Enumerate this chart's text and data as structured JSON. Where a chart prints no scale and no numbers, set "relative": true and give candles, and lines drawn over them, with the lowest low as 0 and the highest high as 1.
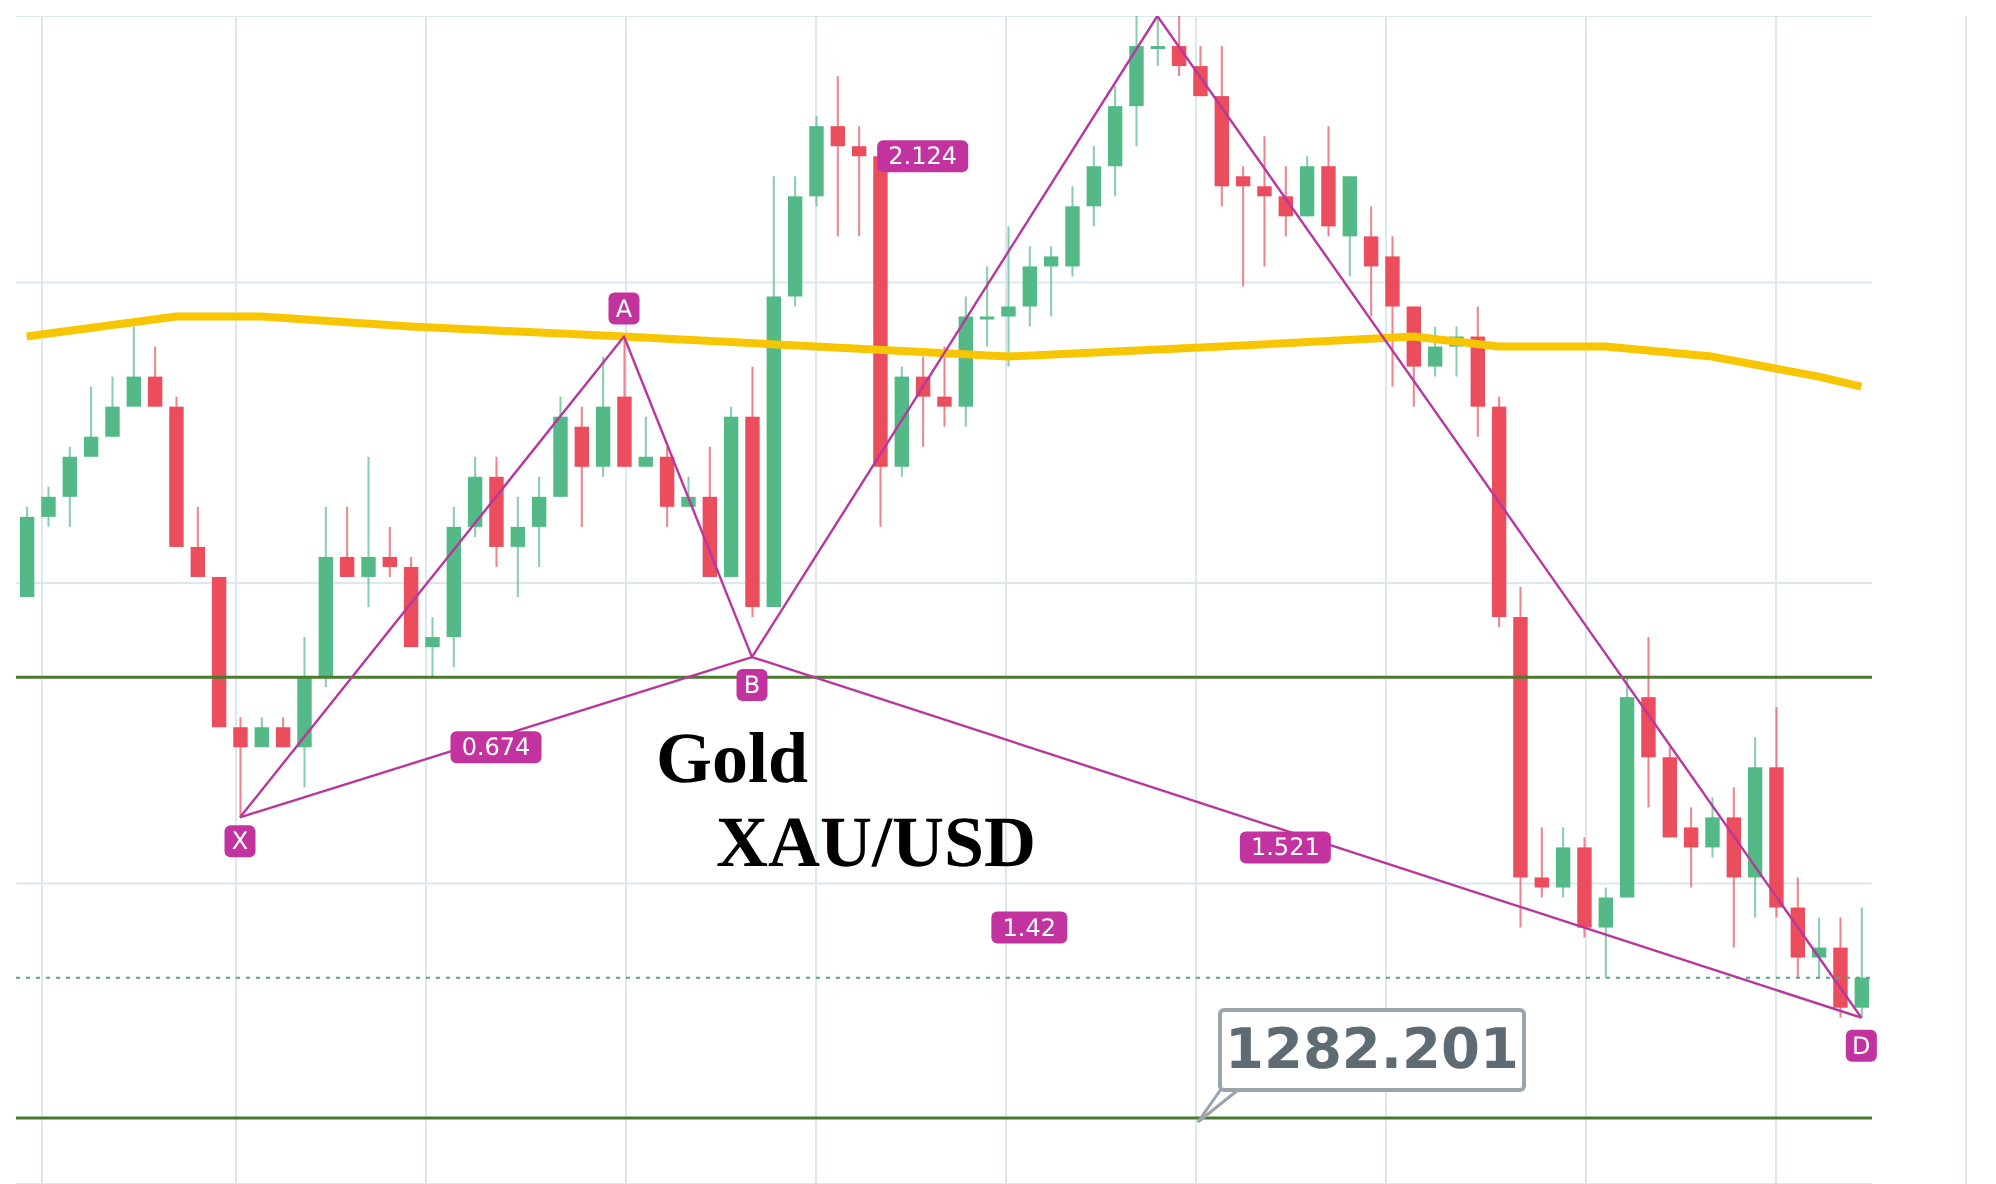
{
  "chart_data": {
    "type": "candlestick",
    "title": "Gold XAU/USD",
    "relative": true,
    "grid": true,
    "categories": [
      null,
      null,
      null,
      null,
      null,
      null,
      null,
      null,
      null,
      null,
      null,
      null,
      null,
      null,
      null,
      null,
      null,
      null,
      null,
      null,
      null,
      null,
      null,
      null,
      null,
      null,
      null,
      null,
      null,
      null,
      null,
      null,
      null,
      null,
      null,
      null,
      null,
      null,
      null,
      null,
      null,
      null,
      null,
      null,
      null,
      null,
      null,
      null,
      null,
      null,
      null,
      null,
      null,
      null,
      null,
      null,
      null,
      null,
      null,
      null,
      null,
      null,
      null,
      null,
      null,
      null,
      null,
      null,
      null,
      null,
      null,
      null,
      null,
      null,
      null,
      null,
      null,
      null,
      null,
      null,
      null,
      null,
      null,
      null,
      null,
      null,
      null
    ],
    "ohlc": [
      [
        0.42,
        0.51,
        0.42,
        0.5
      ],
      [
        0.5,
        0.53,
        0.49,
        0.52
      ],
      [
        0.52,
        0.57,
        0.49,
        0.56
      ],
      [
        0.56,
        0.63,
        0.56,
        0.58
      ],
      [
        0.58,
        0.64,
        0.58,
        0.61
      ],
      [
        0.61,
        0.69,
        0.61,
        0.64
      ],
      [
        0.64,
        0.67,
        0.61,
        0.61
      ],
      [
        0.61,
        0.62,
        0.47,
        0.47
      ],
      [
        0.47,
        0.51,
        0.44,
        0.44
      ],
      [
        0.44,
        0.44,
        0.29,
        0.29
      ],
      [
        0.29,
        0.3,
        0.2,
        0.27
      ],
      [
        0.27,
        0.3,
        0.27,
        0.29
      ],
      [
        0.29,
        0.3,
        0.27,
        0.27
      ],
      [
        0.27,
        0.38,
        0.23,
        0.34
      ],
      [
        0.34,
        0.51,
        0.33,
        0.46
      ],
      [
        0.46,
        0.51,
        0.44,
        0.44
      ],
      [
        0.44,
        0.56,
        0.41,
        0.46
      ],
      [
        0.46,
        0.49,
        0.44,
        0.45
      ],
      [
        0.45,
        0.46,
        0.37,
        0.37
      ],
      [
        0.37,
        0.4,
        0.34,
        0.38
      ],
      [
        0.38,
        0.51,
        0.35,
        0.49
      ],
      [
        0.49,
        0.56,
        0.48,
        0.54
      ],
      [
        0.54,
        0.56,
        0.45,
        0.47
      ],
      [
        0.47,
        0.52,
        0.42,
        0.49
      ],
      [
        0.49,
        0.54,
        0.45,
        0.52
      ],
      [
        0.52,
        0.62,
        0.52,
        0.6
      ],
      [
        0.59,
        0.61,
        0.49,
        0.55
      ],
      [
        0.55,
        0.66,
        0.54,
        0.61
      ],
      [
        0.62,
        0.68,
        0.55,
        0.55
      ],
      [
        0.55,
        0.6,
        0.55,
        0.56
      ],
      [
        0.56,
        0.57,
        0.49,
        0.51
      ],
      [
        0.51,
        0.54,
        0.51,
        0.52
      ],
      [
        0.52,
        0.57,
        0.44,
        0.44
      ],
      [
        0.44,
        0.61,
        0.44,
        0.6
      ],
      [
        0.6,
        0.65,
        0.4,
        0.41
      ],
      [
        0.41,
        0.84,
        0.41,
        0.72
      ],
      [
        0.72,
        0.84,
        0.71,
        0.82
      ],
      [
        0.82,
        0.9,
        0.81,
        0.89
      ],
      [
        0.89,
        0.94,
        0.78,
        0.87
      ],
      [
        0.87,
        0.89,
        0.78,
        0.86
      ],
      [
        0.86,
        0.86,
        0.49,
        0.55
      ],
      [
        0.55,
        0.65,
        0.54,
        0.64
      ],
      [
        0.64,
        0.66,
        0.57,
        0.62
      ],
      [
        0.62,
        0.67,
        0.59,
        0.61
      ],
      [
        0.61,
        0.72,
        0.59,
        0.7
      ],
      [
        0.7,
        0.75,
        0.67,
        0.7
      ],
      [
        0.7,
        0.79,
        0.65,
        0.71
      ],
      [
        0.71,
        0.77,
        0.69,
        0.75
      ],
      [
        0.75,
        0.77,
        0.7,
        0.76
      ],
      [
        0.75,
        0.83,
        0.74,
        0.81
      ],
      [
        0.81,
        0.87,
        0.79,
        0.85
      ],
      [
        0.85,
        0.93,
        0.82,
        0.91
      ],
      [
        0.91,
        1,
        0.87,
        0.97
      ],
      [
        0.97,
        1,
        0.95,
        0.97
      ],
      [
        0.97,
        1,
        0.94,
        0.95
      ],
      [
        0.95,
        0.97,
        0.92,
        0.92
      ],
      [
        0.92,
        0.97,
        0.81,
        0.83
      ],
      [
        0.84,
        0.85,
        0.73,
        0.83
      ],
      [
        0.83,
        0.88,
        0.75,
        0.82
      ],
      [
        0.82,
        0.85,
        0.78,
        0.8
      ],
      [
        0.8,
        0.86,
        0.8,
        0.85
      ],
      [
        0.85,
        0.89,
        0.78,
        0.79
      ],
      [
        0.78,
        0.84,
        0.74,
        0.84
      ],
      [
        0.78,
        0.81,
        0.7,
        0.75
      ],
      [
        0.76,
        0.78,
        0.63,
        0.71
      ],
      [
        0.71,
        0.71,
        0.61,
        0.65
      ],
      [
        0.65,
        0.69,
        0.64,
        0.67
      ],
      [
        0.67,
        0.69,
        0.64,
        0.68
      ],
      [
        0.68,
        0.71,
        0.58,
        0.61
      ],
      [
        0.61,
        0.62,
        0.39,
        0.4
      ],
      [
        0.4,
        0.43,
        0.09,
        0.14
      ],
      [
        0.14,
        0.19,
        0.12,
        0.13
      ],
      [
        0.13,
        0.19,
        0.12,
        0.17
      ],
      [
        0.17,
        0.18,
        0.08,
        0.09
      ],
      [
        0.09,
        0.13,
        0.04,
        0.12
      ],
      [
        0.12,
        0.34,
        0.12,
        0.32
      ],
      [
        0.32,
        0.38,
        0.21,
        0.26
      ],
      [
        0.26,
        0.27,
        0.18,
        0.18
      ],
      [
        0.19,
        0.21,
        0.13,
        0.17
      ],
      [
        0.17,
        0.22,
        0.16,
        0.2
      ],
      [
        0.2,
        0.23,
        0.07,
        0.14
      ],
      [
        0.14,
        0.28,
        0.1,
        0.25
      ],
      [
        0.25,
        0.31,
        0.1,
        0.11
      ],
      [
        0.11,
        0.14,
        0.04,
        0.06
      ],
      [
        0.06,
        0.1,
        0.04,
        0.07
      ],
      [
        0.07,
        0.1,
        0,
        0.01
      ],
      [
        0.01,
        0.11,
        0,
        0.04
      ]
    ],
    "series": [
      {
        "type": "line",
        "color": "#f7c600",
        "values": [
          0.68,
          null,
          null,
          null,
          null,
          null,
          null,
          0.7,
          null,
          null,
          null,
          0.7,
          null,
          null,
          null,
          null,
          null,
          null,
          0.69,
          null,
          null,
          null,
          null,
          null,
          null,
          null,
          null,
          null,
          0.68,
          null,
          null,
          null,
          null,
          null,
          null,
          null,
          null,
          0.67,
          null,
          null,
          null,
          null,
          null,
          null,
          null,
          null,
          0.66,
          null,
          null,
          null,
          null,
          null,
          null,
          null,
          null,
          null,
          0.67,
          null,
          null,
          null,
          null,
          null,
          null,
          null,
          null,
          0.68,
          null,
          null,
          null,
          0.67,
          null,
          null,
          null,
          null,
          0.67,
          null,
          null,
          null,
          null,
          0.66,
          null,
          null,
          null,
          null,
          0.64,
          null,
          0.63
        ]
      },
      {
        "type": "line",
        "color": "#b8379c",
        "values": [
          null,
          null,
          null,
          null,
          null,
          null,
          null,
          null,
          null,
          null,
          0.2,
          null,
          null,
          null,
          null,
          null,
          null,
          null,
          null,
          null,
          null,
          null,
          null,
          null,
          null,
          null,
          null,
          null,
          0.68,
          null,
          null,
          null,
          null,
          null,
          0.36,
          null,
          null,
          null,
          null,
          null,
          null,
          null,
          null,
          null,
          null,
          null,
          null,
          null,
          null,
          null,
          null,
          null,
          null,
          1,
          null,
          null,
          null,
          null,
          null,
          null,
          null,
          null,
          null,
          null,
          null,
          null,
          null,
          null,
          null,
          null,
          null,
          null,
          null,
          null,
          null,
          null,
          null,
          null,
          null,
          null,
          null,
          null,
          null,
          null,
          null,
          null,
          0
        ]
      },
      {
        "type": "line",
        "color": "#b8379c",
        "values": [
          null,
          null,
          null,
          null,
          null,
          null,
          null,
          null,
          null,
          null,
          0.2,
          null,
          null,
          null,
          null,
          null,
          null,
          null,
          null,
          null,
          null,
          null,
          null,
          null,
          null,
          null,
          null,
          null,
          null,
          null,
          null,
          null,
          null,
          null,
          0.36,
          null,
          null,
          null,
          null,
          null,
          null,
          null,
          null,
          null,
          null,
          null,
          null,
          null,
          null,
          null,
          null,
          null,
          null,
          null,
          null,
          null,
          null,
          null,
          null,
          null,
          null,
          null,
          null,
          null,
          null,
          null,
          null,
          null,
          null,
          null,
          null,
          null,
          null,
          null,
          null,
          null,
          null,
          null,
          null,
          null,
          null,
          null,
          null,
          null,
          null,
          null,
          0
        ]
      }
    ],
    "ref_lines": [
      {
        "axis": "y",
        "value": 0.34,
        "color": "#4a7a2c"
      },
      {
        "axis": "y",
        "value": 0.04,
        "color": "#5aa08a",
        "line_style": "dotted"
      },
      {
        "axis": "y",
        "value": -0.1,
        "color": "#4a7a2c"
      }
    ],
    "annotations": [
      "X",
      "A",
      "B",
      "D",
      "0.674",
      "2.124",
      "1.521",
      "1.42",
      "1282.201"
    ]
  }
}
